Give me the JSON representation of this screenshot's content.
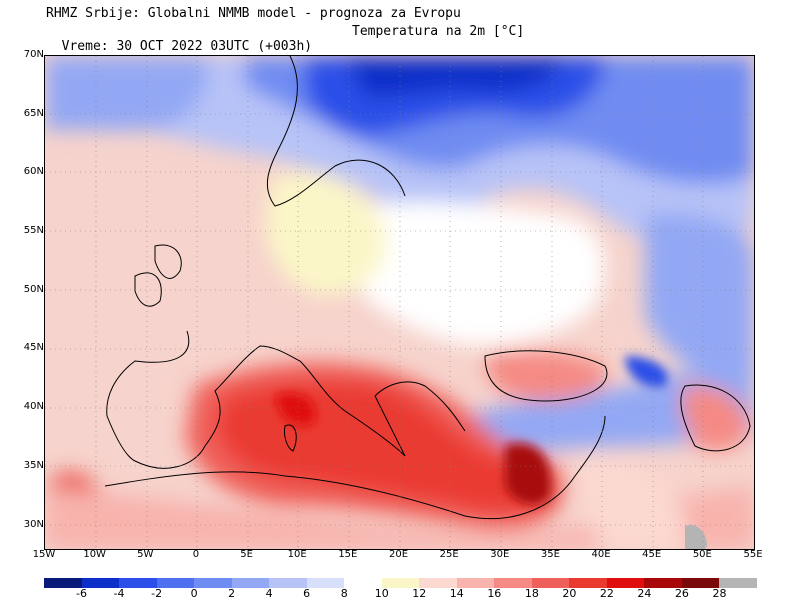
{
  "header": {
    "line1": "RHMZ Srbije: Globalni NMMB model - prognoza za Evropu",
    "line2_time": "Vreme: 30 OCT 2022 03UTC (+003h)",
    "line2_var": "Temperatura na 2m [°C]"
  },
  "map": {
    "lat_range": [
      28,
      70
    ],
    "lon_range": [
      -15,
      55
    ],
    "lat_labels": [
      "70N",
      "65N",
      "60N",
      "55N",
      "50N",
      "45N",
      "40N",
      "35N",
      "30N"
    ],
    "lat_values": [
      70,
      65,
      60,
      55,
      50,
      45,
      40,
      35,
      30
    ],
    "lon_labels": [
      "15W",
      "10W",
      "5W",
      "0",
      "5E",
      "10E",
      "15E",
      "20E",
      "25E",
      "30E",
      "35E",
      "40E",
      "45E",
      "50E",
      "55E"
    ],
    "lon_values": [
      -15,
      -10,
      -5,
      0,
      5,
      10,
      15,
      20,
      25,
      30,
      35,
      40,
      45,
      50,
      55
    ]
  },
  "colorbar": {
    "labels": [
      "-6",
      "-4",
      "-2",
      "0",
      "2",
      "4",
      "6",
      "8",
      "10",
      "12",
      "14",
      "16",
      "18",
      "20",
      "22",
      "24",
      "26",
      "28"
    ],
    "colors": [
      "#0a1a78",
      "#0b2fc8",
      "#2b4fe8",
      "#4d6ff0",
      "#6f8cf2",
      "#93a8f4",
      "#b7c3f7",
      "#d8dffa",
      "#ffffff",
      "#fbf6c8",
      "#fbd8d0",
      "#f8b3ad",
      "#f58a84",
      "#f0605a",
      "#ea3a30",
      "#e00e0e",
      "#a80808",
      "#7a0a0a",
      "#b4b4b4"
    ]
  }
}
